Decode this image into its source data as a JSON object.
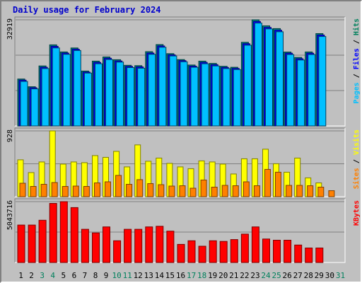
{
  "title": "Daily usage for February 2024",
  "chart_data": {
    "type": "bar",
    "title": "Daily usage for February 2024",
    "categories": [
      "1",
      "2",
      "3",
      "4",
      "5",
      "6",
      "7",
      "8",
      "9",
      "10",
      "11",
      "12",
      "13",
      "14",
      "15",
      "16",
      "17",
      "18",
      "19",
      "20",
      "21",
      "22",
      "23",
      "24",
      "25",
      "26",
      "27",
      "28",
      "29",
      "30",
      "31"
    ],
    "weekend_days": [
      "3",
      "4",
      "10",
      "11",
      "17",
      "18",
      "24",
      "25",
      "31"
    ],
    "panels": [
      {
        "name": "hits-files-pages",
        "max_label": "32919",
        "max": 32919,
        "ylabel_parts": [
          {
            "text": "Pages",
            "color": "#00c0ff"
          },
          {
            "text": " / ",
            "color": "#000000"
          },
          {
            "text": "Files",
            "color": "#0000ff"
          },
          {
            "text": " / ",
            "color": "#000000"
          },
          {
            "text": "Hits",
            "color": "#00805c"
          }
        ],
        "series": [
          {
            "name": "Hits",
            "color": "#008080",
            "values": [
              14560,
              12150,
              18600,
              25150,
              22950,
              24180,
              17030,
              20100,
              21400,
              20550,
              18800,
              18690,
              23040,
              25240,
              22430,
              20580,
              18900,
              20100,
              19400,
              18500,
              18200,
              25950,
              32919,
              31050,
              30200,
              22940,
              21250,
              22950,
              28650,
              null,
              null
            ]
          },
          {
            "name": "Files",
            "color": "#0000ff",
            "values": [
              14200,
              11850,
              18200,
              24700,
              22600,
              23800,
              16700,
              19700,
              21000,
              20150,
              18450,
              18300,
              22600,
              24800,
              22050,
              20250,
              18550,
              19700,
              19000,
              18150,
              17850,
              25500,
              32400,
              30550,
              29700,
              22550,
              20850,
              22550,
              28200,
              null,
              null
            ]
          },
          {
            "name": "Pages",
            "color": "#00c0ff",
            "values": [
              13800,
              11500,
              17800,
              24200,
              22200,
              23400,
              16400,
              19300,
              20600,
              19800,
              18100,
              17900,
              22200,
              24400,
              21700,
              19900,
              18200,
              19300,
              18600,
              17800,
              17500,
              25050,
              31900,
              30100,
              29200,
              22150,
              20450,
              22150,
              27750,
              null,
              null
            ]
          }
        ]
      },
      {
        "name": "visits-sites",
        "max_label": "928",
        "max": 928,
        "ylabel_parts": [
          {
            "text": "Sites",
            "color": "#ff8000"
          },
          {
            "text": " / ",
            "color": "#000000"
          },
          {
            "text": "Visits",
            "color": "#ffff00"
          }
        ],
        "series": [
          {
            "name": "Visits",
            "color": "#ffff00",
            "values": [
              520,
              340,
              490,
              928,
              460,
              490,
              480,
              580,
              555,
              640,
              420,
              730,
              500,
              545,
              470,
              420,
              395,
              505,
              490,
              460,
              320,
              535,
              535,
              670,
              465,
              345,
              545,
              265,
              195,
              null,
              null
            ]
          },
          {
            "name": "Sites",
            "color": "#ff8000",
            "values": [
              190,
              145,
              175,
              200,
              145,
              150,
              145,
              195,
              210,
              300,
              175,
              240,
              185,
              170,
              150,
              155,
              120,
              235,
              135,
              160,
              155,
              210,
              155,
              385,
              345,
              160,
              160,
              155,
              135,
              85,
              null
            ]
          }
        ]
      },
      {
        "name": "kbytes",
        "max_label": "5043716",
        "max": 5043716,
        "ylabel_parts": [
          {
            "text": "KBytes",
            "color": "#ff0000"
          }
        ],
        "series": [
          {
            "name": "KBytes",
            "color": "#ff0000",
            "values": [
              3100000,
              3100000,
              3500000,
              4900000,
              5043716,
              4550000,
              2750000,
              2450000,
              2950000,
              1800000,
              2750000,
              2750000,
              2950000,
              3000000,
              2600000,
              1500000,
              1800000,
              1350000,
              1800000,
              1750000,
              1900000,
              2350000,
              2950000,
              1950000,
              1850000,
              1850000,
              1450000,
              1200000,
              1200000,
              null,
              null
            ]
          }
        ]
      }
    ]
  }
}
